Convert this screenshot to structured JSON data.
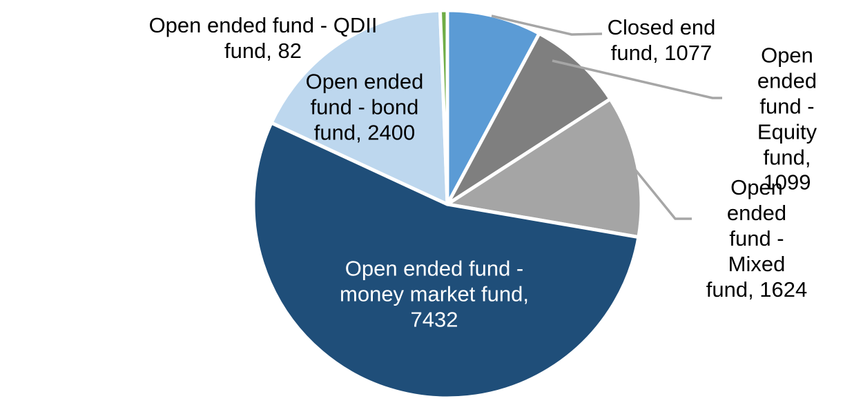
{
  "chart_data": {
    "type": "pie",
    "title": "",
    "legend": "none",
    "grid": false,
    "direction": "clockwise",
    "start_angle_deg": 0,
    "total": 13714,
    "categories": [
      "Closed end fund",
      "Open ended fund - Equity fund",
      "Open ended fund - Mixed fund",
      "Open ended fund - money market fund",
      "Open ended fund - bond fund",
      "Open ended fund - QDII fund"
    ],
    "values": [
      1077,
      1099,
      1624,
      7432,
      2400,
      82
    ],
    "slices": [
      {
        "name": "Closed end fund",
        "value": 1077,
        "color": "#5B9BD5",
        "label_text": "Closed end\nfund, 1077",
        "label_color": "#000000"
      },
      {
        "name": "Open ended fund - Equity fund",
        "value": 1099,
        "color": "#7F7F7F",
        "label_text": "Open ended\nfund - Equity\nfund, 1099",
        "label_color": "#000000"
      },
      {
        "name": "Open ended fund - Mixed fund",
        "value": 1624,
        "color": "#A5A5A5",
        "label_text": "Open ended\nfund - Mixed\nfund, 1624",
        "label_color": "#000000"
      },
      {
        "name": "Open ended fund - money market fund",
        "value": 7432,
        "color": "#1F4E79",
        "label_text": "Open ended fund -\nmoney market fund,\n7432",
        "label_color": "#FFFFFF"
      },
      {
        "name": "Open ended fund - bond fund",
        "value": 2400,
        "color": "#BDD7EE",
        "label_text": "Open ended\nfund - bond\nfund, 2400",
        "label_color": "#000000"
      },
      {
        "name": "Open ended fund - QDII fund",
        "value": 82,
        "color": "#70AD47",
        "label_text": "Open ended fund - QDII\nfund, 82",
        "label_color": "#000000"
      }
    ],
    "slice_border_color": "#FFFFFF",
    "leader_line_color": "#A6A6A6"
  }
}
